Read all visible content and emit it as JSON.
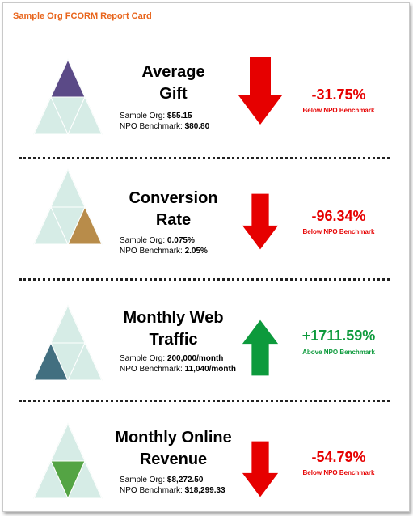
{
  "report_title": "Sample Org FCORM Report Card",
  "colors": {
    "title_orange": "#e8641b",
    "down_red": "#e60000",
    "up_green": "#0d9a3c",
    "pyramid_pale": "#d6ece6",
    "pyramid_purple": "#5b4a87",
    "pyramid_tan": "#b88c4a",
    "pyramid_teal": "#426f80",
    "pyramid_green": "#54a444"
  },
  "metrics": [
    {
      "title_line1": "Average",
      "title_line2": "Gift",
      "org_label": "Sample Org: ",
      "org_value": "$55.15",
      "bench_label": "NPO Benchmark: ",
      "bench_value": "$80.80",
      "change": "-31.75%",
      "comparison": "Below NPO Benchmark",
      "direction": "down",
      "pyramid_highlight": "top",
      "pyramid_icon": "pyramid-top-highlight-icon"
    },
    {
      "title_line1": "Conversion",
      "title_line2": "Rate",
      "org_label": "Sample Org: ",
      "org_value": "0.075%",
      "bench_label": "NPO Benchmark: ",
      "bench_value": "2.05%",
      "change": "-96.34%",
      "comparison": "Below NPO Benchmark",
      "direction": "down",
      "pyramid_highlight": "bottom-right",
      "pyramid_icon": "pyramid-bottom-right-highlight-icon"
    },
    {
      "title_line1": "Monthly Web",
      "title_line2": "Traffic",
      "org_label": "Sample Org: ",
      "org_value": "200,000/month",
      "bench_label": "NPO Benchmark: ",
      "bench_value": "11,040/month",
      "change": "+1711.59%",
      "comparison": "Above NPO Benchmark",
      "direction": "up",
      "pyramid_highlight": "bottom-left",
      "pyramid_icon": "pyramid-bottom-left-highlight-icon"
    },
    {
      "title_line1": "Monthly Online",
      "title_line2": "Revenue",
      "org_label": "Sample Org: ",
      "org_value": "$8,272.50",
      "bench_label": "NPO Benchmark: ",
      "bench_value": "$18,299.33",
      "change": "-54.79%",
      "comparison": "Below NPO Benchmark",
      "direction": "down",
      "pyramid_highlight": "center",
      "pyramid_icon": "pyramid-center-highlight-icon"
    }
  ]
}
